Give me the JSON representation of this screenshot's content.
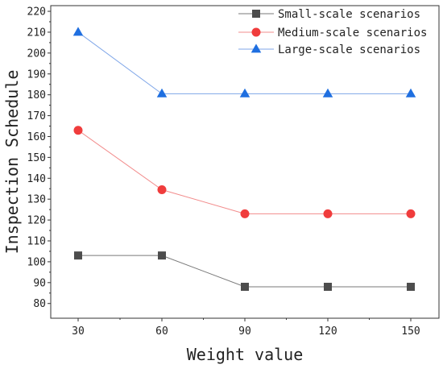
{
  "chart_data": {
    "type": "line",
    "title": "",
    "xlabel": "Weight value",
    "ylabel": "Inspection Schedule",
    "x": [
      30,
      60,
      90,
      120,
      150
    ],
    "xticks": [
      "30",
      "60",
      "90",
      "120",
      "150"
    ],
    "yticks": [
      "80",
      "90",
      "100",
      "110",
      "120",
      "130",
      "140",
      "150",
      "160",
      "170",
      "180",
      "190",
      "200",
      "210",
      "220"
    ],
    "ylim": [
      75,
      223
    ],
    "grid": false,
    "legend_position": "top-right",
    "series": [
      {
        "name": "Small-scale scenarios",
        "values": [
          103,
          103,
          88,
          88,
          88
        ],
        "marker": "square",
        "line_color": "#7a7a7a",
        "marker_color": "#4d4d4d"
      },
      {
        "name": "Medium-scale scenarios",
        "values": [
          163,
          134.5,
          123,
          123,
          123
        ],
        "marker": "circle",
        "line_color": "#f28c8c",
        "marker_color": "#f03c3c"
      },
      {
        "name": "Large-scale scenarios",
        "values": [
          210,
          180.5,
          180.5,
          180.5,
          180.5
        ],
        "marker": "triangle",
        "line_color": "#7fa6e8",
        "marker_color": "#1f6fe0"
      }
    ]
  }
}
